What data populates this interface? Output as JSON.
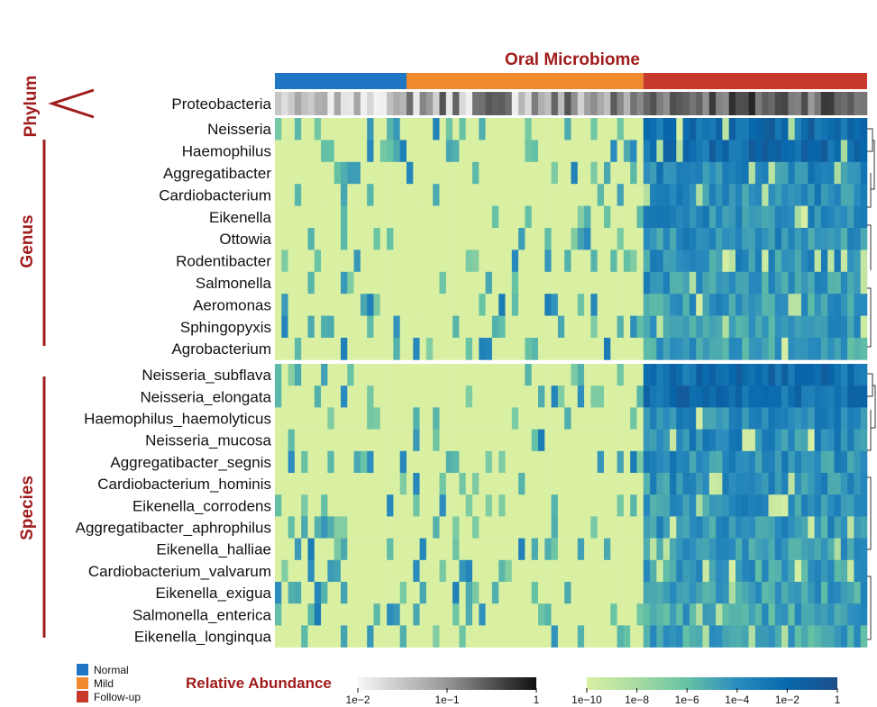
{
  "chart_data": {
    "type": "heatmap",
    "title": "Oral Microbiome",
    "n_samples": 90,
    "groups": [
      {
        "name": "Normal",
        "count": 20,
        "color": "#1f77c4"
      },
      {
        "name": "Mild",
        "count": 36,
        "color": "#ef8a2e"
      },
      {
        "name": "Follow-up",
        "count": 34,
        "color": "#c7392b"
      }
    ],
    "phylum_label": "Phylum",
    "phylum_row": "Proteobacteria",
    "genus_label": "Genus",
    "genus_rows": [
      "Neisseria",
      "Haemophilus",
      "Aggregatibacter",
      "Cardiobacterium",
      "Eikenella",
      "Ottowia",
      "Rodentibacter",
      "Salmonella",
      "Aeromonas",
      "Sphingopyxis",
      "Agrobacterium"
    ],
    "species_label": "Species",
    "species_rows": [
      "Neisseria_subflava",
      "Neisseria_elongata",
      "Haemophilus_haemolyticus",
      "Neisseria_mucosa",
      "Aggregatibacter_segnis",
      "Cardiobacterium_hominis",
      "Eikenella_corrodens",
      "Aggregatibacter_aphrophilus",
      "Eikenella_halliae",
      "Cardiobacterium_valvarum",
      "Eikenella_exigua",
      "Salmonella_enterica",
      "Eikenella_longinqua"
    ],
    "legend": {
      "title": "Relative Abundance",
      "gray_ticks": [
        "1e−2",
        "1e−1",
        "1"
      ],
      "gray_scale": {
        "min": -2,
        "max": 0
      },
      "color_ticks": [
        "1e−10",
        "1e−8",
        "1e−6",
        "1e−4",
        "1e−2",
        "1"
      ],
      "color_scale": {
        "min": -10,
        "max": 0
      },
      "colors": [
        "#d9f0a3",
        "#a8dba0",
        "#66c2a4",
        "#2b8cbe",
        "#0868ac",
        "#1d4e89"
      ]
    },
    "note": "Cell values are log10 relative abundance; Normal and Mild samples are mostly near 1e-10, Follow-up samples are mostly 1e-6 to 1e-2."
  }
}
